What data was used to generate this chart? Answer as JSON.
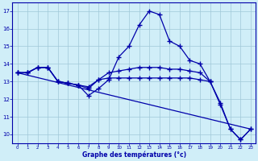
{
  "xlabel": "Graphe des températures (°c)",
  "xlim": [
    -0.5,
    23.5
  ],
  "ylim": [
    9.5,
    17.5
  ],
  "xticks": [
    0,
    1,
    2,
    3,
    4,
    5,
    6,
    7,
    8,
    9,
    10,
    11,
    12,
    13,
    14,
    15,
    16,
    17,
    18,
    19,
    20,
    21,
    22,
    23
  ],
  "yticks": [
    10,
    11,
    12,
    13,
    14,
    15,
    16,
    17
  ],
  "background_color": "#d0eef8",
  "grid_color": "#a0c8d8",
  "line_color": "#0000aa",
  "line1_x": [
    0,
    1,
    2,
    3,
    4,
    5,
    6,
    7,
    8,
    9,
    10,
    11,
    12,
    13,
    14,
    15,
    16,
    17,
    18,
    19
  ],
  "line1_y": [
    13.5,
    13.5,
    13.8,
    13.8,
    13.0,
    12.9,
    12.8,
    12.7,
    13.1,
    13.5,
    13.6,
    13.7,
    13.8,
    13.8,
    13.8,
    13.7,
    13.7,
    13.6,
    13.5,
    13.0
  ],
  "line2_x": [
    0,
    1,
    2,
    3,
    4,
    5,
    6,
    7,
    8,
    9,
    10,
    11,
    12,
    13,
    14,
    15,
    16,
    17,
    18,
    19,
    20,
    21,
    22,
    23
  ],
  "line2_y": [
    13.5,
    13.5,
    13.8,
    13.8,
    13.0,
    12.9,
    12.8,
    12.2,
    12.6,
    13.1,
    14.4,
    15.0,
    16.2,
    17.0,
    16.8,
    15.3,
    15.0,
    14.2,
    14.0,
    13.0,
    11.7,
    10.3,
    9.7,
    10.3
  ],
  "line3_x": [
    0,
    1,
    2,
    3,
    4,
    5,
    6,
    7,
    8,
    9,
    10,
    11,
    12,
    13,
    14,
    15,
    16,
    17,
    18,
    19,
    20,
    21,
    22,
    23
  ],
  "line3_y": [
    13.5,
    13.5,
    13.8,
    13.8,
    13.0,
    12.9,
    12.8,
    12.6,
    13.1,
    13.2,
    13.2,
    13.2,
    13.2,
    13.2,
    13.2,
    13.2,
    13.2,
    13.2,
    13.1,
    13.0,
    11.8,
    10.3,
    9.7,
    10.3
  ],
  "line4_x": [
    0,
    23
  ],
  "line4_y": [
    13.5,
    10.3
  ]
}
